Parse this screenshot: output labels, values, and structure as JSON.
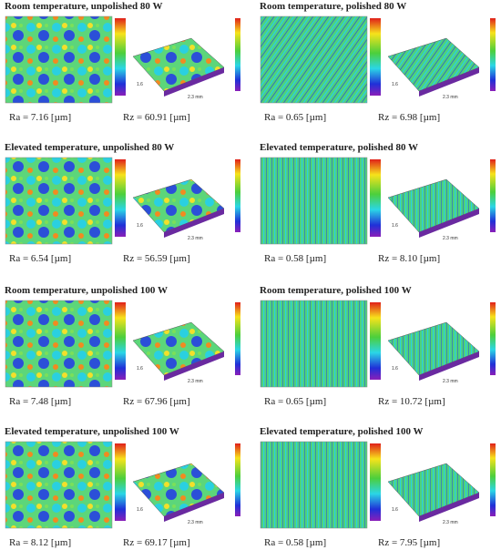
{
  "panels": [
    {
      "title": "Room temperature, unpolished 80 W",
      "ra": "Ra = 7.16 [µm]",
      "rz": "Rz = 60.91 [µm]",
      "width_label": "2.3 mm",
      "depth_label": "1.6"
    },
    {
      "title": "Room temperature, polished 80 W",
      "ra": "Ra = 0.65 [µm]",
      "rz": "Rz = 6.98 [µm]",
      "width_label": "2.3 mm",
      "depth_label": "1.6"
    },
    {
      "title": "Elevated temperature, unpolished 80 W",
      "ra": "Ra = 6.54 [µm]",
      "rz": "Rz = 56.59 [µm]",
      "width_label": "2.3 mm",
      "depth_label": "1.6"
    },
    {
      "title": "Elevated temperature, polished 80 W",
      "ra": "Ra = 0.58 [µm]",
      "rz": "Rz = 8.10 [µm]",
      "width_label": "2.3 mm",
      "depth_label": "1.6"
    },
    {
      "title": "Room temperature, unpolished 100 W",
      "ra": "Ra = 7.48 [µm]",
      "rz": "Rz = 67.96 [µm]",
      "width_label": "2.3 mm",
      "depth_label": "1.6"
    },
    {
      "title": "Room temperature, polished 100 W",
      "ra": "Ra = 0.65 [µm]",
      "rz": "Rz = 10.72 [µm]",
      "width_label": "2.3 mm",
      "depth_label": "1.6"
    },
    {
      "title": "Elevated temperature, unpolished 100 W",
      "ra": "Ra = 8.12 [µm]",
      "rz": "Rz = 69.17 [µm]",
      "width_label": "2.3 mm",
      "depth_label": "1.6"
    },
    {
      "title": "Elevated temperature, polished 100 W",
      "ra": "Ra = 0.58 [µm]",
      "rz": "Rz = 7.95 [µm]",
      "width_label": "2.3 mm",
      "depth_label": "1.6"
    }
  ]
}
